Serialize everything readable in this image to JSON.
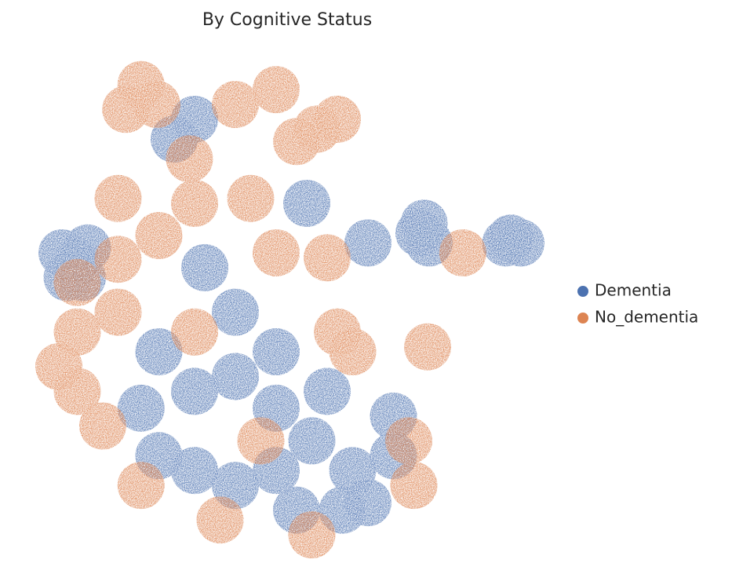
{
  "chart_data": {
    "type": "scatter",
    "title": "By Cognitive Status",
    "xlim": [
      0,
      100
    ],
    "ylim": [
      0,
      100
    ],
    "legend": "right",
    "series": [
      {
        "name": "Dementia",
        "color": "#4c72b0",
        "x": [
          6,
          9,
          7,
          11,
          10,
          94,
          96,
          93,
          76,
          78,
          77,
          54,
          66,
          32,
          40,
          48,
          55,
          63,
          71,
          32,
          40,
          52,
          61,
          25,
          71,
          40,
          34,
          28,
          32,
          48,
          58,
          21.5,
          25,
          48,
          66
        ],
        "values": [
          60,
          58,
          55,
          61,
          55,
          63,
          62,
          62,
          64,
          62,
          66,
          70,
          62,
          32,
          35,
          28.6,
          22,
          16,
          19,
          16,
          13,
          8,
          8,
          19,
          27,
          48,
          57,
          83,
          87,
          40,
          32,
          28.6,
          40,
          16,
          9.5
        ]
      },
      {
        "name": "No_dementia",
        "color": "#dd8452",
        "x": [
          21.5,
          18.5,
          24.6,
          40,
          48,
          56,
          60,
          52,
          17,
          25,
          32,
          43,
          48,
          58,
          60,
          63,
          17,
          9,
          5.4,
          9,
          14,
          84.6,
          77.7,
          21.5,
          75,
          55,
          37,
          17,
          32,
          45,
          74,
          31,
          9
        ],
        "values": [
          94,
          89,
          90,
          90,
          93,
          85,
          87,
          82.5,
          71,
          63.5,
          70,
          71,
          60,
          59,
          44,
          40,
          48,
          44,
          37,
          32,
          25,
          60,
          41,
          13,
          13,
          3,
          6,
          58.7,
          44,
          22,
          22,
          79,
          54
        ]
      }
    ]
  }
}
